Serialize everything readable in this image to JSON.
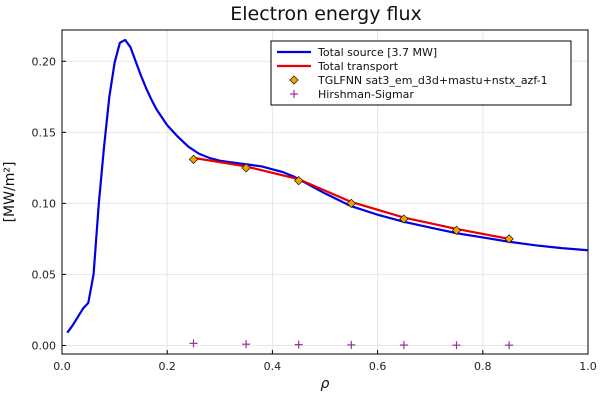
{
  "chart_data": {
    "type": "line",
    "title": "Electron energy flux",
    "xlabel": "ρ",
    "ylabel": "[MW/m²]",
    "xlim": [
      0,
      1
    ],
    "ylim": [
      -0.006,
      0.222
    ],
    "xticks": [
      0.0,
      0.2,
      0.4,
      0.6,
      0.8,
      1.0
    ],
    "xtick_labels": [
      "0.0",
      "0.2",
      "0.4",
      "0.6",
      "0.8",
      "1.0"
    ],
    "yticks": [
      0.0,
      0.05,
      0.1,
      0.15,
      0.2
    ],
    "ytick_labels": [
      "0.00",
      "0.05",
      "0.10",
      "0.15",
      "0.20"
    ],
    "grid": true,
    "legend_position": "top-right",
    "series": [
      {
        "name": "Total source [3.7 MW]",
        "kind": "line",
        "color": "#0000e6",
        "x": [
          0.01,
          0.02,
          0.03,
          0.04,
          0.05,
          0.06,
          0.07,
          0.08,
          0.09,
          0.1,
          0.11,
          0.12,
          0.13,
          0.14,
          0.15,
          0.16,
          0.17,
          0.18,
          0.2,
          0.22,
          0.24,
          0.26,
          0.28,
          0.3,
          0.32,
          0.34,
          0.36,
          0.38,
          0.4,
          0.42,
          0.44,
          0.46,
          0.5,
          0.55,
          0.6,
          0.65,
          0.7,
          0.75,
          0.8,
          0.85,
          0.9,
          0.95,
          1.0
        ],
        "y": [
          0.009,
          0.014,
          0.02,
          0.026,
          0.03,
          0.05,
          0.1,
          0.14,
          0.175,
          0.199,
          0.213,
          0.215,
          0.21,
          0.2,
          0.19,
          0.181,
          0.173,
          0.166,
          0.155,
          0.147,
          0.14,
          0.135,
          0.132,
          0.13,
          0.129,
          0.128,
          0.127,
          0.126,
          0.124,
          0.122,
          0.119,
          0.115,
          0.107,
          0.098,
          0.092,
          0.087,
          0.083,
          0.079,
          0.076,
          0.073,
          0.0705,
          0.0685,
          0.067
        ]
      },
      {
        "name": "Total transport",
        "kind": "line",
        "color": "#e60000",
        "x": [
          0.25,
          0.35,
          0.45,
          0.55,
          0.65,
          0.75,
          0.85
        ],
        "y": [
          0.132,
          0.126,
          0.117,
          0.101,
          0.09,
          0.082,
          0.075
        ]
      },
      {
        "name": "TGLFNN sat3_em_d3d+mastu+nstx_azf-1",
        "kind": "scatter",
        "marker": "diamond",
        "color": "#f0a000",
        "x": [
          0.25,
          0.35,
          0.45,
          0.55,
          0.65,
          0.75,
          0.85
        ],
        "y": [
          0.131,
          0.125,
          0.116,
          0.1,
          0.089,
          0.081,
          0.075
        ]
      },
      {
        "name": "Hirshman-Sigmar",
        "kind": "scatter",
        "marker": "plus",
        "color": "#9b30a8",
        "x": [
          0.25,
          0.35,
          0.45,
          0.55,
          0.65,
          0.75,
          0.85
        ],
        "y": [
          0.0015,
          0.0009,
          0.0006,
          0.0004,
          0.0003,
          0.0002,
          0.0002
        ]
      }
    ]
  }
}
